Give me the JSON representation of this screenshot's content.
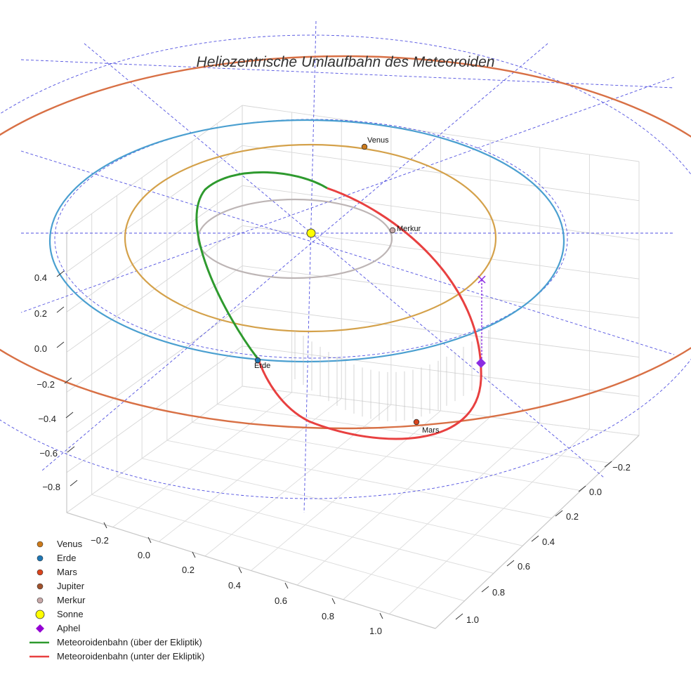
{
  "chart_data": {
    "type": "line",
    "projection": "3d",
    "title": "Heliozentrische Umlaufbahn des Meteoroiden",
    "xlabel": "",
    "ylabel": "",
    "zlabel": "",
    "x_ticks": [
      "−0.2",
      "0.0",
      "0.2",
      "0.4",
      "0.6",
      "0.8",
      "1.0"
    ],
    "y_ticks": [
      "−0.2",
      "0.0",
      "0.2",
      "0.4",
      "0.6",
      "0.8",
      "1.0"
    ],
    "z_ticks": [
      "0.4",
      "0.2",
      "0.0",
      "−0.2",
      "−0.4",
      "−0.6",
      "−0.8"
    ],
    "grid": true,
    "legend_position": "bottom-left",
    "colors": {
      "venus": "#d4a14a",
      "erde": "#1f6fc0",
      "mars": "#e05a2b",
      "jupiter": "#d87045",
      "merkur": "#bdb5b5",
      "sonne": "#ffff00",
      "aphel": "#8a2be2",
      "above": "#2e9a2e",
      "below": "#e84040",
      "celestial": "#5050e0"
    },
    "planets": [
      {
        "name": "Venus",
        "label": "Venus"
      },
      {
        "name": "Erde",
        "label": "Erde"
      },
      {
        "name": "Mars",
        "label": "Mars"
      },
      {
        "name": "Merkur",
        "label": "Merkur"
      }
    ],
    "legend": [
      {
        "label": "Venus",
        "marker": "dot",
        "color": "#cc7a1a"
      },
      {
        "label": "Erde",
        "marker": "dot",
        "color": "#1f77b4"
      },
      {
        "label": "Mars",
        "marker": "dot",
        "color": "#d9441c"
      },
      {
        "label": "Jupiter",
        "marker": "dot",
        "color": "#a0522d"
      },
      {
        "label": "Merkur",
        "marker": "dot",
        "color": "#c7a8a8"
      },
      {
        "label": "Sonne",
        "marker": "sun",
        "color": "#ffff00"
      },
      {
        "label": "Aphel",
        "marker": "diamond",
        "color": "#9400d3"
      },
      {
        "label": "Meteoroidenbahn (über der Ekliptik)",
        "marker": "line",
        "color": "#2e9a2e"
      },
      {
        "label": "Meteoroidenbahn (unter der Ekliptik)",
        "marker": "line",
        "color": "#e84040"
      }
    ]
  }
}
